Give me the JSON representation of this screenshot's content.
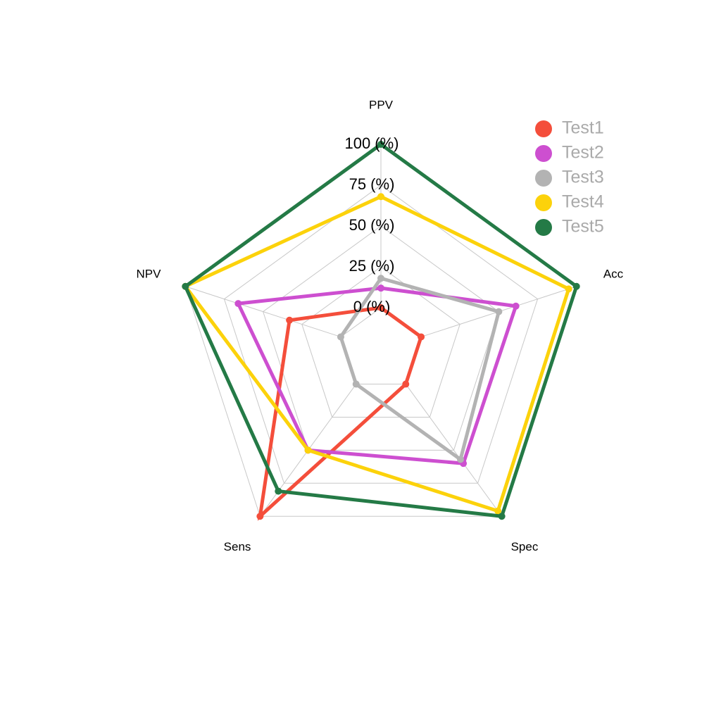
{
  "chart_data": {
    "type": "radar",
    "categories": [
      "PPV",
      "Acc",
      "Spec",
      "Sens",
      "NPV"
    ],
    "rlim": [
      0,
      100
    ],
    "rticks": [
      {
        "value": 0,
        "label": "0 (%)"
      },
      {
        "value": 25,
        "label": "25 (%)"
      },
      {
        "value": 50,
        "label": "50 (%)"
      },
      {
        "value": 75,
        "label": "75 (%)"
      },
      {
        "value": 100,
        "label": "100 (%)"
      }
    ],
    "grid": true,
    "legend": "top-right",
    "series": [
      {
        "name": "Test1",
        "color": "#f44e3b",
        "values": [
          0,
          0,
          0,
          100,
          33
        ]
      },
      {
        "name": "Test2",
        "color": "#cd4fd0",
        "values": [
          12,
          61,
          60,
          50,
          66
        ]
      },
      {
        "name": "Test3",
        "color": "#b3b3b3",
        "values": [
          18,
          50,
          57,
          0,
          0
        ]
      },
      {
        "name": "Test4",
        "color": "#fcd20b",
        "values": [
          68,
          95,
          96,
          50,
          100
        ]
      },
      {
        "name": "Test5",
        "color": "#247a46",
        "values": [
          100,
          100,
          100,
          81,
          100
        ]
      }
    ]
  }
}
